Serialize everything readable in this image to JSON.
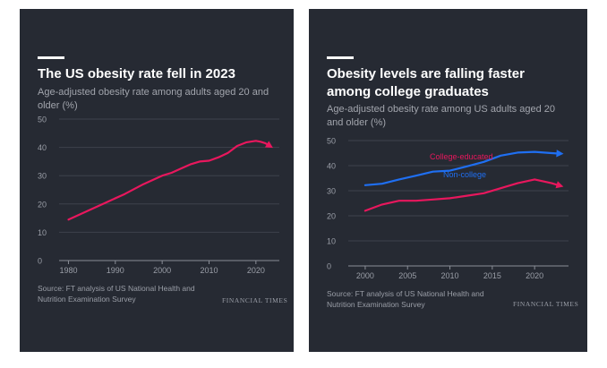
{
  "panels": [
    {
      "title": "The US obesity rate fell in 2023",
      "subtitle": "Age-adjusted obesity rate among adults aged 20 and older (%)",
      "source": "Source: FT analysis of US National Health and Nutrition Examination Survey",
      "logo": "FINANCIAL TIMES"
    },
    {
      "title": "Obesity levels are falling faster among college graduates",
      "subtitle": "Age-adjusted obesity rate among US adults aged 20 and older (%)",
      "source": "Source: FT analysis of US National Health and Nutrition Examination Survey",
      "logo": "FINANCIAL TIMES"
    }
  ],
  "chart_data": [
    {
      "type": "line",
      "title": "The US obesity rate fell in 2023",
      "xlim": [
        1978,
        2025
      ],
      "ylim": [
        0,
        50
      ],
      "xticks": [
        1980,
        1990,
        2000,
        2010,
        2020
      ],
      "yticks": [
        0,
        10,
        20,
        30,
        40,
        50
      ],
      "grid": true,
      "series": [
        {
          "color": "#e8175d",
          "arrow": true,
          "x": [
            1980,
            1984,
            1988,
            1992,
            1996,
            2000,
            2002,
            2004,
            2006,
            2008,
            2010,
            2012,
            2014,
            2016,
            2018,
            2020,
            2021,
            2022,
            2023
          ],
          "y": [
            14.5,
            17.5,
            20.5,
            23.5,
            27.0,
            30.0,
            31.0,
            32.5,
            34.0,
            35.0,
            35.3,
            36.5,
            38.0,
            40.5,
            41.8,
            42.3,
            42.0,
            41.5,
            40.5
          ]
        }
      ]
    },
    {
      "type": "line",
      "title": "Obesity levels are falling faster among college graduates",
      "xlim": [
        1998,
        2024
      ],
      "ylim": [
        0,
        50
      ],
      "xticks": [
        2000,
        2005,
        2010,
        2015,
        2020
      ],
      "yticks": [
        0,
        10,
        20,
        30,
        40,
        50
      ],
      "grid": true,
      "series": [
        {
          "name": "Non-college",
          "color": "#1f6ff2",
          "arrow": true,
          "x": [
            2000,
            2002,
            2004,
            2006,
            2008,
            2010,
            2012,
            2014,
            2016,
            2018,
            2020,
            2022,
            2023
          ],
          "y": [
            32.2,
            32.8,
            34.5,
            36.0,
            37.6,
            38.0,
            39.7,
            41.5,
            44.0,
            45.2,
            45.5,
            45.0,
            44.8
          ]
        },
        {
          "name": "College-educated",
          "color": "#e8175d",
          "arrow": true,
          "x": [
            2000,
            2002,
            2004,
            2006,
            2008,
            2010,
            2012,
            2014,
            2016,
            2018,
            2020,
            2022,
            2023
          ],
          "y": [
            22.0,
            24.5,
            26.0,
            26.0,
            26.5,
            27.0,
            28.0,
            29.0,
            31.0,
            33.0,
            34.5,
            33.0,
            32.0
          ]
        }
      ]
    }
  ]
}
